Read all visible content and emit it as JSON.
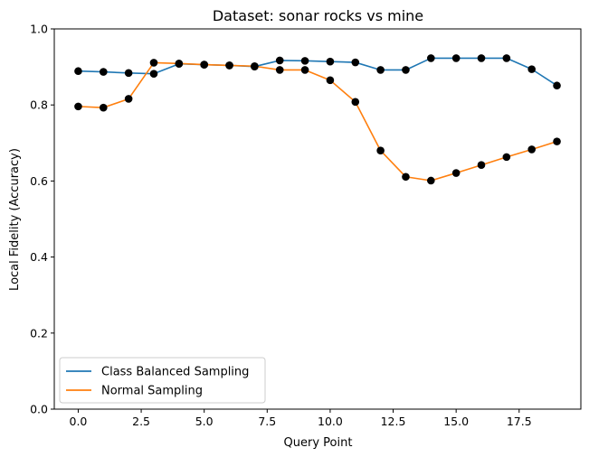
{
  "chart_data": {
    "type": "line",
    "title": "Dataset: sonar rocks vs mine",
    "xlabel": "Query Point",
    "ylabel": "Local Fidelity (Accuracy)",
    "xlim": [
      -0.95,
      19.95
    ],
    "ylim": [
      0.0,
      1.0
    ],
    "xticks": [
      0.0,
      2.5,
      5.0,
      7.5,
      10.0,
      12.5,
      15.0,
      17.5
    ],
    "xtick_labels": [
      "0.0",
      "2.5",
      "5.0",
      "7.5",
      "10.0",
      "12.5",
      "15.0",
      "17.5"
    ],
    "yticks": [
      0.0,
      0.2,
      0.4,
      0.6,
      0.8,
      1.0
    ],
    "ytick_labels": [
      "0.0",
      "0.2",
      "0.4",
      "0.6",
      "0.8",
      "1.0"
    ],
    "grid": false,
    "legend_position": "lower-left",
    "marker_color": "#000000",
    "x": [
      0,
      1,
      2,
      3,
      4,
      5,
      6,
      7,
      8,
      9,
      10,
      11,
      12,
      13,
      14,
      15,
      16,
      17,
      18,
      19
    ],
    "series": [
      {
        "name": "Class Balanced Sampling",
        "color": "#1f77b4",
        "values": [
          0.889,
          0.887,
          0.884,
          0.882,
          0.908,
          0.906,
          0.904,
          0.901,
          0.917,
          0.916,
          0.914,
          0.912,
          0.892,
          0.892,
          0.923,
          0.923,
          0.923,
          0.923,
          0.894,
          0.851
        ]
      },
      {
        "name": "Normal Sampling",
        "color": "#ff7f0e",
        "values": [
          0.796,
          0.793,
          0.816,
          0.911,
          0.909,
          0.906,
          0.904,
          0.902,
          0.892,
          0.892,
          0.865,
          0.808,
          0.68,
          0.611,
          0.601,
          0.621,
          0.642,
          0.663,
          0.683,
          0.704
        ]
      }
    ]
  }
}
